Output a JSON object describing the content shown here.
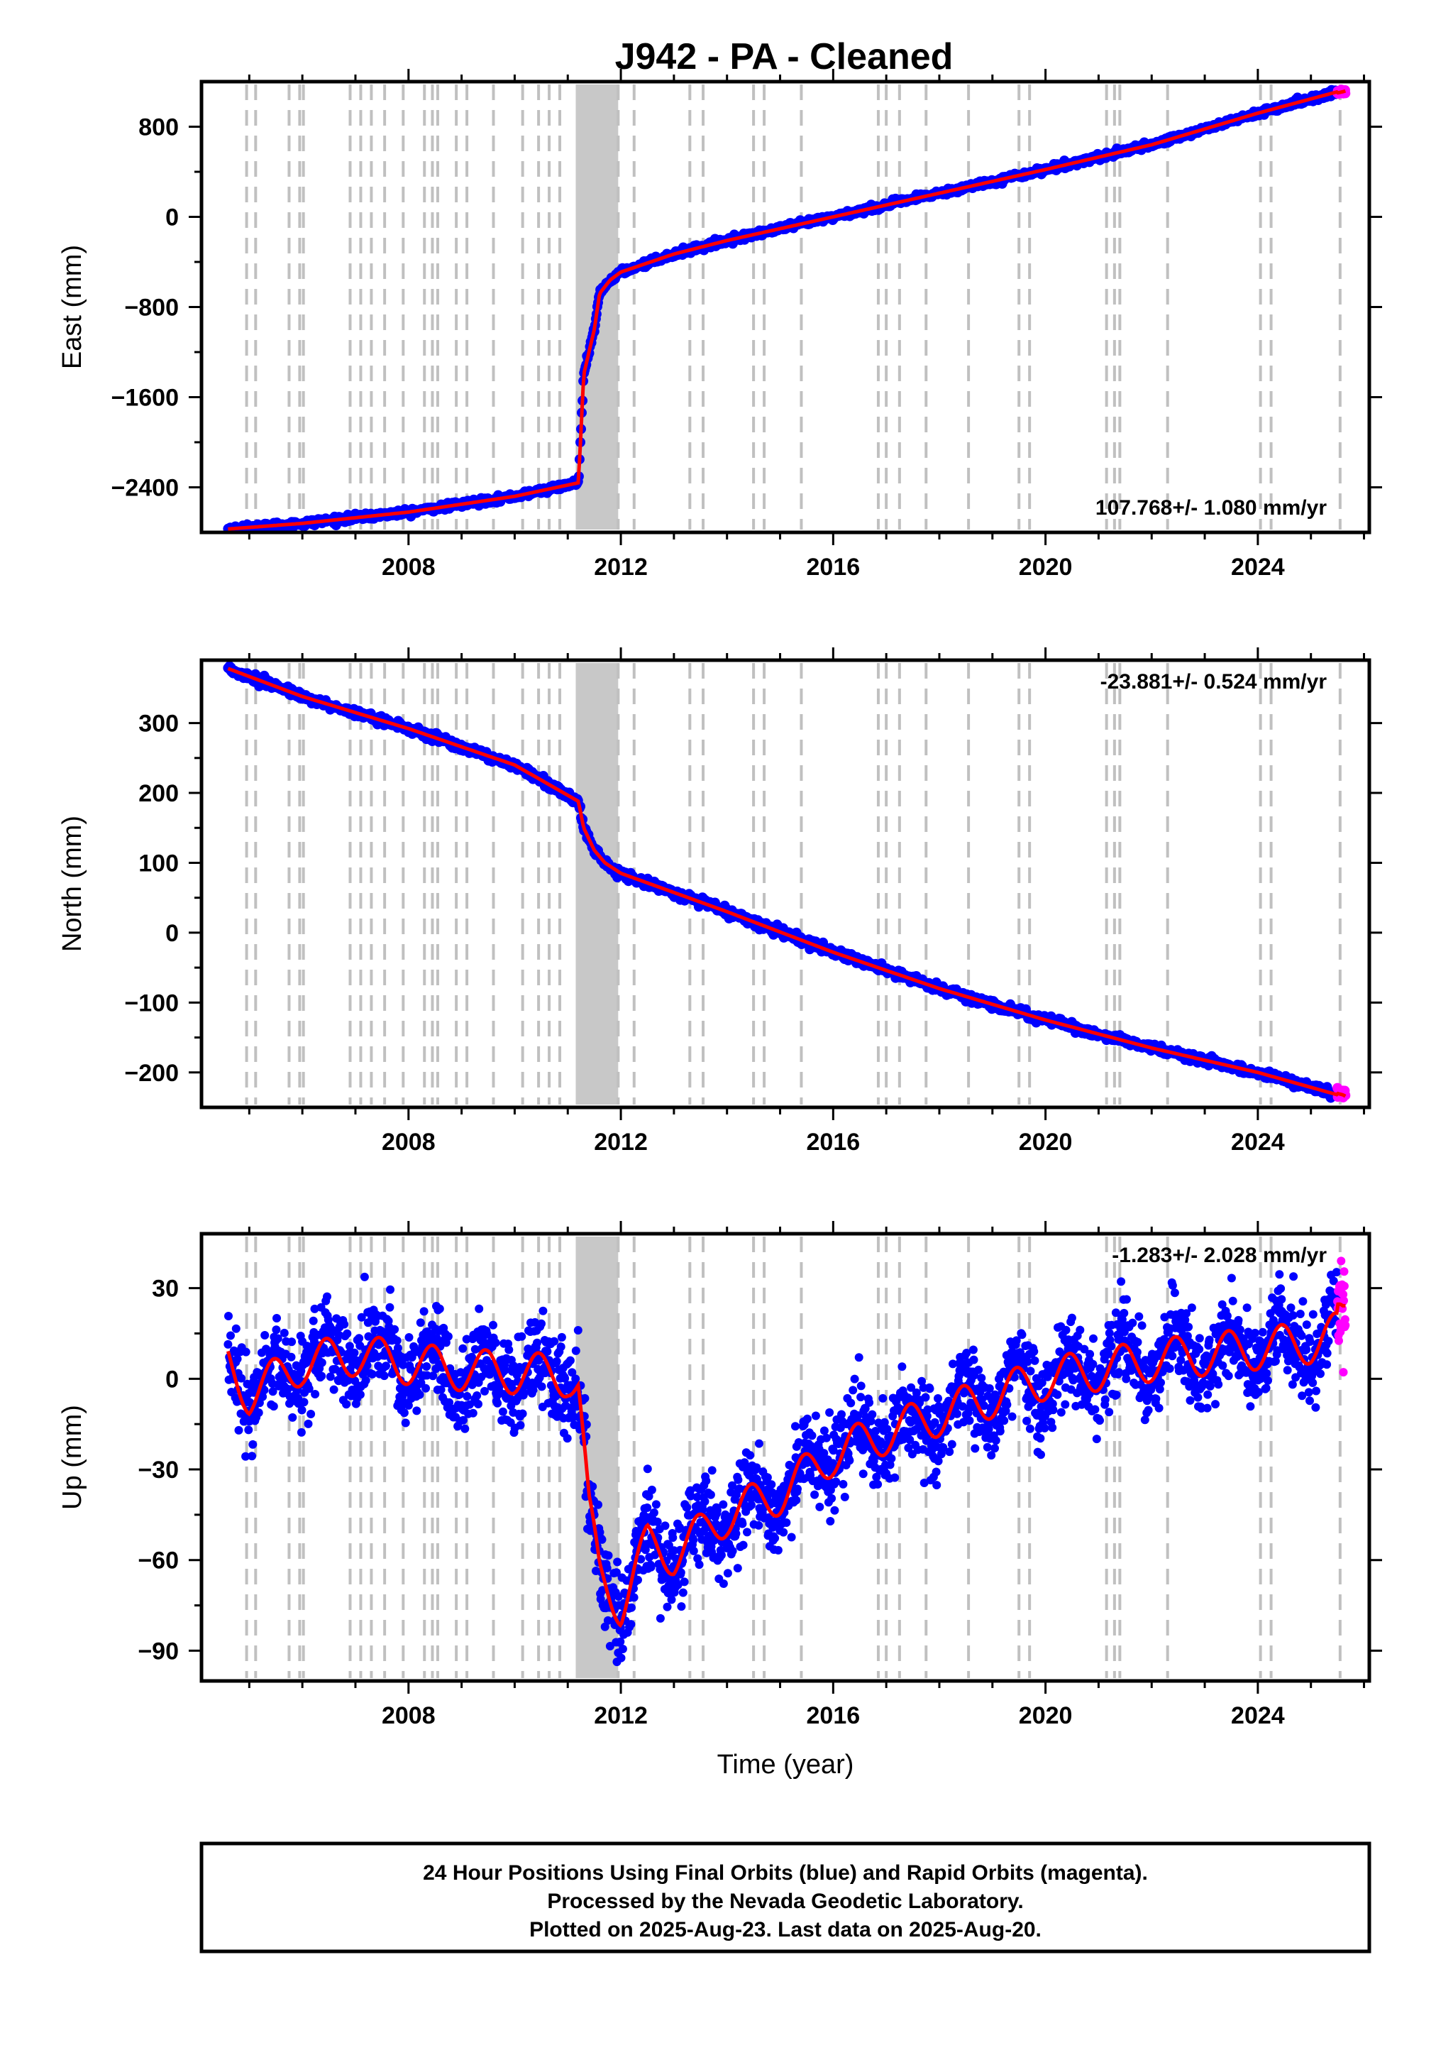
{
  "title": "J942  - PA - Cleaned",
  "footer": {
    "line1": "24 Hour Positions Using Final Orbits (blue) and Rapid Orbits (magenta).",
    "line2": "Processed by the Nevada Geodetic Laboratory.",
    "line3": "Plotted on 2025-Aug-23. Last data on 2025-Aug-20."
  },
  "colors": {
    "final_orbits": "#0000ff",
    "rapid_orbits": "#ff00ff",
    "model": "#ff0000",
    "breaks": "#c0c0c0"
  },
  "chart_data": [
    {
      "type": "scatter",
      "component": "east",
      "ylabel": "East (mm)",
      "xlabel": "",
      "xlim": [
        2004.1,
        2026.1
      ],
      "ylim": [
        -2800,
        1200
      ],
      "yticks": [
        -2400,
        -1600,
        -800,
        0,
        800
      ],
      "xticks": [
        2008,
        2012,
        2016,
        2020,
        2024
      ],
      "rate_label": "107.768+/- 1.080 mm/yr",
      "rate_position": "bottom-right",
      "grid": false,
      "series": [
        {
          "name": "Final Orbits",
          "color": "#0000ff",
          "x": [
            2004.6,
            2006,
            2008,
            2010,
            2011.2,
            2011.25,
            2011.3,
            2011.5,
            2011.6,
            2011.8,
            2012,
            2013,
            2014,
            2016,
            2018,
            2020,
            2022,
            2024,
            2025.5
          ],
          "y": [
            -2770,
            -2720,
            -2620,
            -2480,
            -2360,
            -1900,
            -1400,
            -1000,
            -680,
            -560,
            -490,
            -330,
            -210,
            0,
            210,
            420,
            640,
            920,
            1110
          ]
        },
        {
          "name": "Rapid Orbits",
          "color": "#ff00ff",
          "x": [
            2025.5,
            2025.6,
            2025.65
          ],
          "y": [
            1100,
            1110,
            1118
          ]
        }
      ]
    },
    {
      "type": "scatter",
      "component": "north",
      "ylabel": "North (mm)",
      "xlabel": "",
      "xlim": [
        2004.1,
        2026.1
      ],
      "ylim": [
        -250,
        390
      ],
      "yticks": [
        -200,
        -100,
        0,
        100,
        200,
        300
      ],
      "xticks": [
        2008,
        2012,
        2016,
        2020,
        2024
      ],
      "rate_label": "-23.881+/- 0.524 mm/yr",
      "rate_position": "top-right",
      "grid": false,
      "series": [
        {
          "name": "Final Orbits",
          "color": "#0000ff",
          "x": [
            2004.6,
            2006,
            2008,
            2010,
            2011.2,
            2011.3,
            2011.5,
            2011.7,
            2012,
            2014,
            2016,
            2018,
            2020,
            2022,
            2024,
            2025.5
          ],
          "y": [
            378,
            338,
            292,
            240,
            188,
            150,
            118,
            100,
            85,
            30,
            -28,
            -80,
            -125,
            -165,
            -200,
            -232
          ]
        },
        {
          "name": "Rapid Orbits",
          "color": "#ff00ff",
          "x": [
            2025.5,
            2025.6,
            2025.65
          ],
          "y": [
            -230,
            -232,
            -234
          ]
        }
      ]
    },
    {
      "type": "scatter",
      "component": "up",
      "ylabel": "Up (mm)",
      "xlabel": "Time (year)",
      "xlim": [
        2004.1,
        2026.1
      ],
      "ylim": [
        -100,
        48
      ],
      "yticks": [
        -90,
        -60,
        -30,
        0,
        30
      ],
      "xticks": [
        2008,
        2012,
        2016,
        2020,
        2024
      ],
      "rate_label": "-1.283+/- 2.028 mm/yr",
      "rate_position": "top-right",
      "grid": false,
      "series": [
        {
          "name": "Final Orbits",
          "color": "#0000ff",
          "x": [
            2004.6,
            2005,
            2006,
            2007,
            2008,
            2009,
            2010,
            2011,
            2011.2,
            2011.4,
            2011.6,
            2012,
            2012.5,
            2013,
            2014,
            2015,
            2016,
            2017,
            2018,
            2019,
            2020,
            2021,
            2022,
            2023,
            2024,
            2025,
            2025.5
          ],
          "y": [
            5,
            -5,
            5,
            8,
            5,
            3,
            2,
            1,
            -2,
            -45,
            -65,
            -75,
            -55,
            -58,
            -45,
            -38,
            -25,
            -18,
            -12,
            -6,
            0,
            3,
            6,
            8,
            10,
            12,
            15
          ]
        },
        {
          "name": "Rapid Orbits",
          "color": "#ff00ff",
          "x": [
            2025.5,
            2025.6,
            2025.65
          ],
          "y": [
            18,
            20,
            22
          ]
        }
      ]
    }
  ]
}
